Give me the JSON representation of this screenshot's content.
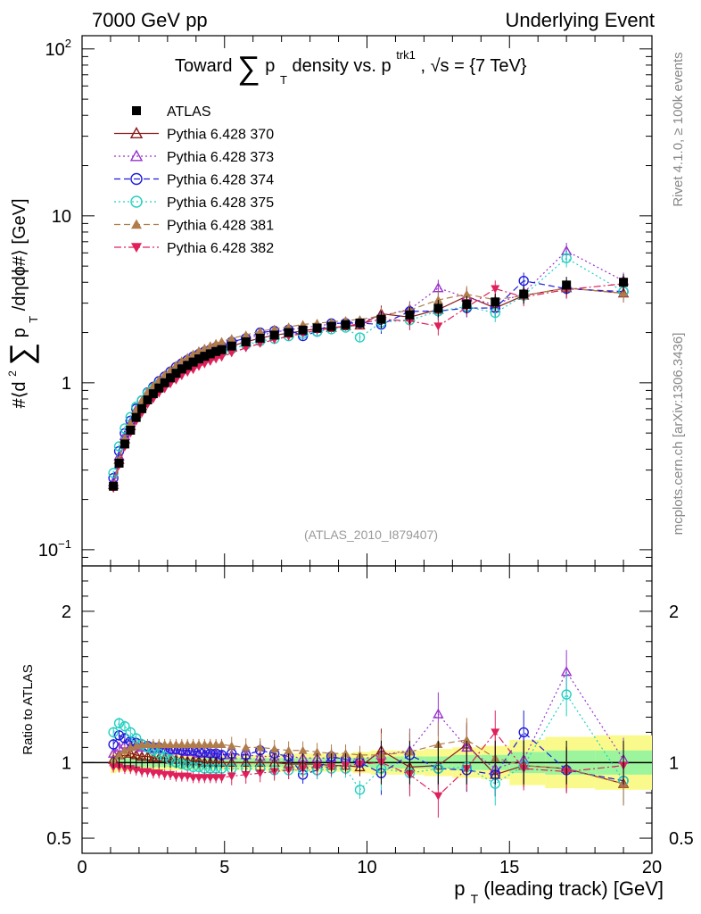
{
  "header": {
    "left": "7000 GeV pp",
    "right": "Underlying Event"
  },
  "side_labels": {
    "rivet": "Rivet 4.1.0, ≥ 100k events",
    "mcplots": "mcplots.cern.ch [arXiv:1306.3436]"
  },
  "colors": {
    "ATLAS": "#000000",
    "p370": "#8b1a1a",
    "p373": "#9932cc",
    "p374": "#1c1cdc",
    "p375": "#20d0c0",
    "p381": "#b07c4c",
    "p382": "#e0205a",
    "band_inner": "#9cf59c",
    "band_outer": "#fafa8c"
  },
  "chart_data": {
    "type": "scatter",
    "title": "Toward ∑ p_T density vs. p_T^trk1, √s = {7 TeV}",
    "title_parts": {
      "lead": "Toward",
      "sum": "∑",
      "p": "p",
      "sub": "T",
      "mid": "density vs. p",
      "sup": "trk1",
      "tail": ", √s = {7 TeV}"
    },
    "ylabel": "#⟨d²∑p_T /dηdϕ#⟩ [GeV]",
    "ylabel_parts": {
      "a": "#⟨d",
      "b": "2",
      "sum": "∑",
      "p": "p",
      "sub": "T",
      "c": " /dηdϕ#⟩ [GeV]"
    },
    "xlabel": "p_T (leading track) [GeV]",
    "xlabel_parts": {
      "p": "p",
      "sub": "T",
      "rest": " (leading track) [GeV]"
    },
    "ratio_ylabel": "Ratio to ATLAS",
    "analysis_tag": "(ATLAS_2010_I879407)",
    "yscale": "log",
    "xlim": [
      0,
      20
    ],
    "ylim": [
      0.08,
      120
    ],
    "ratio_ylim": [
      0.4,
      2.3
    ],
    "x_ticks": [
      "0",
      "5",
      "10",
      "15",
      "20"
    ],
    "y_ticks": [
      {
        "base": "10",
        "exp": "2",
        "value": 100
      },
      {
        "base": "10",
        "exp": "",
        "value": 10
      },
      {
        "base": "1",
        "exp": "",
        "value": 1
      },
      {
        "base": "10",
        "exp": "−1",
        "value": 0.1
      }
    ],
    "ratio_ticks": [
      "0.5",
      "1",
      "2"
    ],
    "x": [
      1.1,
      1.3,
      1.5,
      1.7,
      1.9,
      2.1,
      2.3,
      2.5,
      2.7,
      2.9,
      3.1,
      3.3,
      3.5,
      3.7,
      3.9,
      4.1,
      4.3,
      4.5,
      4.7,
      4.9,
      5.25,
      5.75,
      6.25,
      6.75,
      7.25,
      7.75,
      8.25,
      8.75,
      9.25,
      9.75,
      10.5,
      11.5,
      12.5,
      13.5,
      14.5,
      15.5,
      17.0,
      19.0
    ],
    "atlas": [
      0.24,
      0.33,
      0.43,
      0.52,
      0.62,
      0.7,
      0.79,
      0.86,
      0.93,
      1.0,
      1.07,
      1.14,
      1.21,
      1.27,
      1.33,
      1.39,
      1.44,
      1.49,
      1.54,
      1.58,
      1.66,
      1.76,
      1.85,
      1.93,
      2.0,
      2.07,
      2.13,
      2.18,
      2.23,
      2.28,
      2.4,
      2.55,
      2.8,
      2.95,
      3.05,
      3.4,
      3.85,
      4.0
    ],
    "band_inner": [
      0.03,
      0.03,
      0.03,
      0.03,
      0.03,
      0.03,
      0.03,
      0.03,
      0.03,
      0.03,
      0.03,
      0.03,
      0.03,
      0.03,
      0.03,
      0.03,
      0.03,
      0.03,
      0.03,
      0.03,
      0.03,
      0.03,
      0.03,
      0.03,
      0.03,
      0.03,
      0.03,
      0.03,
      0.03,
      0.03,
      0.04,
      0.04,
      0.04,
      0.05,
      0.05,
      0.07,
      0.08,
      0.08
    ],
    "band_outer": [
      0.07,
      0.06,
      0.06,
      0.06,
      0.05,
      0.05,
      0.05,
      0.05,
      0.05,
      0.05,
      0.05,
      0.05,
      0.05,
      0.05,
      0.05,
      0.05,
      0.05,
      0.05,
      0.05,
      0.05,
      0.05,
      0.05,
      0.05,
      0.06,
      0.06,
      0.06,
      0.06,
      0.06,
      0.06,
      0.07,
      0.08,
      0.08,
      0.09,
      0.1,
      0.11,
      0.15,
      0.17,
      0.18
    ],
    "series": [
      {
        "name": "ATLAS",
        "color_key": "ATLAS",
        "marker": "square",
        "line": "none",
        "ratio": [
          1.0,
          1.0,
          1.0,
          1.0,
          1.0,
          1.0,
          1.0,
          1.0,
          1.0,
          1.0,
          1.0,
          1.0,
          1.0,
          1.0,
          1.0,
          1.0,
          1.0,
          1.0,
          1.0,
          1.0,
          1.0,
          1.0,
          1.0,
          1.0,
          1.0,
          1.0,
          1.0,
          1.0,
          1.0,
          1.0,
          1.0,
          1.0,
          1.0,
          1.0,
          1.0,
          1.0,
          1.0,
          1.0
        ]
      },
      {
        "name": "Pythia 6.428 370",
        "color_key": "p370",
        "marker": "triangle-up-open",
        "line": "solid",
        "ratio": [
          1.02,
          1.05,
          1.07,
          1.06,
          1.05,
          1.04,
          1.04,
          1.03,
          1.03,
          1.03,
          1.02,
          1.02,
          1.02,
          1.01,
          1.01,
          1.01,
          1.0,
          1.0,
          1.0,
          1.0,
          1.0,
          1.0,
          1.0,
          1.0,
          0.99,
          0.99,
          0.99,
          0.98,
          0.98,
          0.97,
          1.08,
          0.97,
          0.98,
          1.12,
          0.92,
          0.98,
          0.96,
          0.86
        ]
      },
      {
        "name": "Pythia 6.428 373",
        "color_key": "p373",
        "marker": "triangle-up-open",
        "line": "dotted",
        "ratio": [
          1.06,
          1.1,
          1.12,
          1.11,
          1.11,
          1.1,
          1.1,
          1.09,
          1.09,
          1.09,
          1.08,
          1.08,
          1.08,
          1.07,
          1.07,
          1.06,
          1.06,
          1.06,
          1.06,
          1.05,
          1.05,
          1.05,
          1.04,
          1.04,
          1.04,
          1.03,
          1.03,
          1.03,
          1.03,
          1.02,
          1.05,
          1.08,
          1.32,
          1.1,
          0.96,
          1.02,
          1.6,
          1.02
        ]
      },
      {
        "name": "Pythia 6.428 374",
        "color_key": "p374",
        "marker": "circle-open",
        "line": "dashed",
        "ratio": [
          1.12,
          1.18,
          1.16,
          1.14,
          1.13,
          1.12,
          1.11,
          1.1,
          1.1,
          1.09,
          1.09,
          1.09,
          1.08,
          1.08,
          1.08,
          1.07,
          1.07,
          1.06,
          1.06,
          1.05,
          1.06,
          1.05,
          1.08,
          1.06,
          1.04,
          0.92,
          0.95,
          1.04,
          1.02,
          1.0,
          0.93,
          1.05,
          0.96,
          0.95,
          0.92,
          1.2,
          0.95,
          0.88
        ]
      },
      {
        "name": "Pythia 6.428 375",
        "color_key": "p375",
        "marker": "circle-open",
        "line": "dotted",
        "ratio": [
          1.2,
          1.26,
          1.24,
          1.2,
          1.16,
          1.12,
          1.1,
          1.08,
          1.06,
          1.04,
          1.02,
          1.0,
          0.99,
          0.98,
          0.97,
          0.97,
          0.96,
          0.96,
          0.96,
          0.96,
          0.96,
          0.96,
          0.96,
          0.95,
          0.95,
          0.95,
          0.95,
          0.96,
          0.96,
          0.82,
          0.96,
          0.93,
          0.96,
          0.97,
          0.86,
          0.98,
          1.45,
          0.88
        ]
      },
      {
        "name": "Pythia 6.428 381",
        "color_key": "p381",
        "marker": "triangle-up-filled",
        "line": "dashed",
        "ratio": [
          1.0,
          1.05,
          1.08,
          1.1,
          1.11,
          1.12,
          1.12,
          1.12,
          1.12,
          1.12,
          1.12,
          1.12,
          1.12,
          1.12,
          1.12,
          1.12,
          1.12,
          1.12,
          1.12,
          1.12,
          1.11,
          1.1,
          1.1,
          1.09,
          1.08,
          1.08,
          1.07,
          1.06,
          1.06,
          1.05,
          1.05,
          1.07,
          1.12,
          1.15,
          1.03,
          0.98,
          0.96,
          0.86
        ]
      },
      {
        "name": "Pythia 6.428 382",
        "color_key": "p382",
        "marker": "triangle-down-filled",
        "line": "dashdot",
        "ratio": [
          0.97,
          0.97,
          0.96,
          0.96,
          0.95,
          0.94,
          0.94,
          0.93,
          0.93,
          0.92,
          0.92,
          0.91,
          0.91,
          0.91,
          0.9,
          0.9,
          0.9,
          0.9,
          0.9,
          0.9,
          0.91,
          0.92,
          0.93,
          0.94,
          0.95,
          0.96,
          0.97,
          0.97,
          0.98,
          0.99,
          1.0,
          0.92,
          0.78,
          0.96,
          1.2,
          0.96,
          0.94,
          0.98
        ]
      }
    ]
  }
}
